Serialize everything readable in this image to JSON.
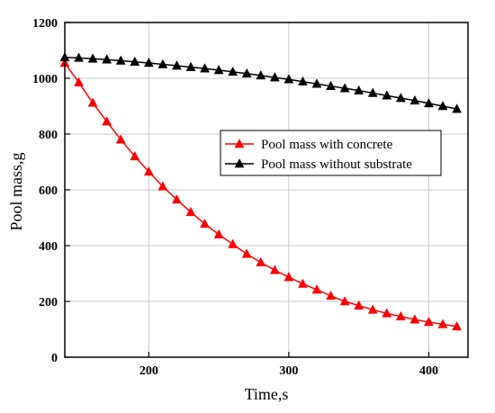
{
  "chart_data": {
    "type": "line",
    "xlabel": "Time,s",
    "ylabel": "Pool mass,g",
    "xlim": [
      140,
      428
    ],
    "ylim": [
      0,
      1200
    ],
    "x_ticks": [
      200,
      300,
      400
    ],
    "y_ticks": [
      0,
      200,
      400,
      600,
      800,
      1000,
      1200
    ],
    "grid": true,
    "legend_position": "center-right",
    "series": [
      {
        "name": "Pool mass with concrete",
        "color": "#ff0000",
        "marker": "triangle",
        "x": [
          140,
          150,
          160,
          170,
          180,
          190,
          200,
          210,
          220,
          230,
          240,
          250,
          260,
          270,
          280,
          290,
          300,
          310,
          320,
          330,
          340,
          350,
          360,
          370,
          380,
          390,
          400,
          410,
          420
        ],
        "y": [
          1055,
          985,
          912,
          845,
          780,
          720,
          665,
          612,
          565,
          520,
          478,
          440,
          405,
          370,
          340,
          312,
          287,
          263,
          242,
          220,
          200,
          185,
          170,
          157,
          146,
          135,
          126,
          118,
          110
        ]
      },
      {
        "name": "Pool mass without substrate",
        "color": "#000000",
        "marker": "triangle",
        "x": [
          140,
          150,
          160,
          170,
          180,
          190,
          200,
          210,
          220,
          230,
          240,
          250,
          260,
          270,
          280,
          290,
          300,
          310,
          320,
          330,
          340,
          350,
          360,
          370,
          380,
          390,
          400,
          410,
          420
        ],
        "y": [
          1075,
          1073,
          1070,
          1067,
          1063,
          1059,
          1055,
          1050,
          1045,
          1040,
          1035,
          1029,
          1023,
          1017,
          1010,
          1003,
          996,
          988,
          980,
          972,
          964,
          956,
          947,
          938,
          929,
          920,
          910,
          900,
          890
        ]
      }
    ]
  }
}
